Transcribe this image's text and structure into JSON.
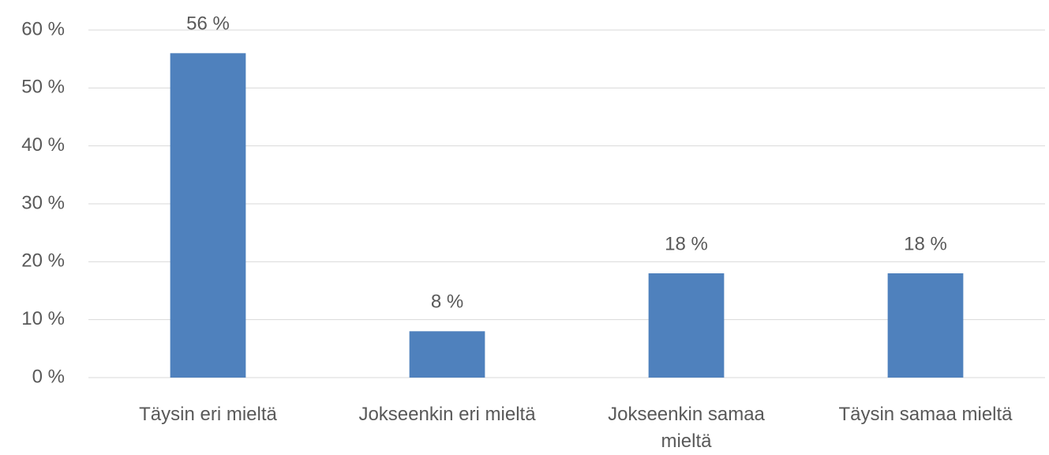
{
  "chart_data": {
    "type": "bar",
    "categories": [
      "Täysin eri mieltä",
      "Jokseenkin eri mieltä",
      "Jokseenkin samaa mieltä",
      "Täysin samaa mieltä"
    ],
    "values": [
      56,
      8,
      18,
      18
    ],
    "value_labels": [
      "56 %",
      "8 %",
      "18 %",
      "18 %"
    ],
    "color": "#4f81bd",
    "ylim": [
      0,
      60
    ],
    "yticks": [
      {
        "value": 0,
        "label": "0 %"
      },
      {
        "value": 10,
        "label": "10 %"
      },
      {
        "value": 20,
        "label": "20 %"
      },
      {
        "value": 30,
        "label": "30 %"
      },
      {
        "value": 40,
        "label": "40 %"
      },
      {
        "value": 50,
        "label": "50 %"
      },
      {
        "value": 60,
        "label": "60 %"
      }
    ],
    "grid": true
  }
}
